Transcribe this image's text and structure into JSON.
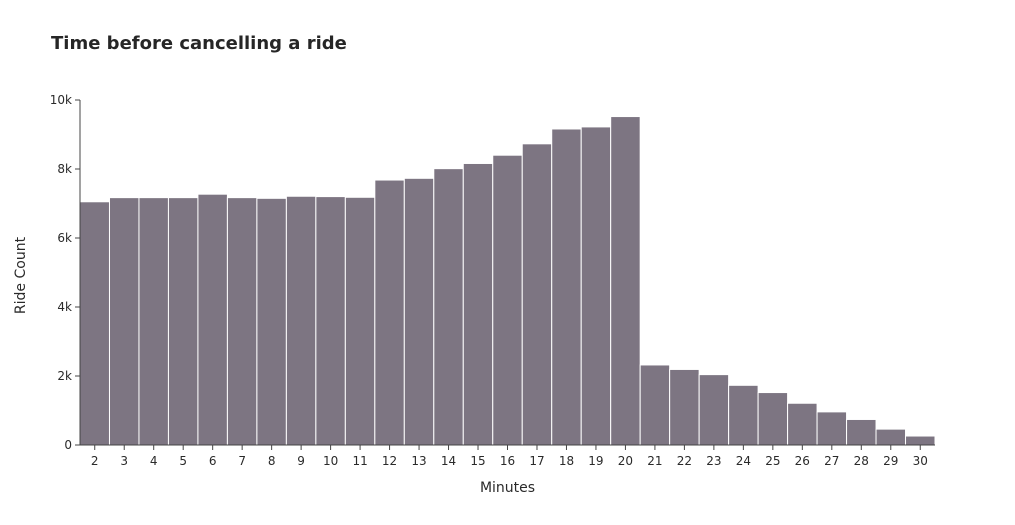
{
  "chart_data": {
    "type": "bar",
    "title": "Time before cancelling a ride",
    "xlabel": "Minutes",
    "ylabel": "Ride Count",
    "categories": [
      "2",
      "3",
      "4",
      "5",
      "6",
      "7",
      "8",
      "9",
      "10",
      "11",
      "12",
      "13",
      "14",
      "15",
      "16",
      "17",
      "18",
      "19",
      "20",
      "21",
      "22",
      "23",
      "24",
      "25",
      "26",
      "27",
      "28",
      "29",
      "30"
    ],
    "values": [
      7050,
      7170,
      7170,
      7170,
      7270,
      7170,
      7150,
      7210,
      7200,
      7180,
      7680,
      7730,
      8010,
      8160,
      8400,
      8730,
      9160,
      9220,
      9520,
      2320,
      2190,
      2040,
      1730,
      1520,
      1210,
      960,
      740,
      460,
      260
    ],
    "ylim": [
      0,
      10000
    ],
    "yticks": [
      0,
      2000,
      4000,
      6000,
      8000,
      10000
    ],
    "ytick_labels": [
      "0",
      "2k",
      "4k",
      "6k",
      "8k",
      "10k"
    ],
    "bar_color": "#7d7582",
    "grid": false,
    "legend": "none"
  }
}
